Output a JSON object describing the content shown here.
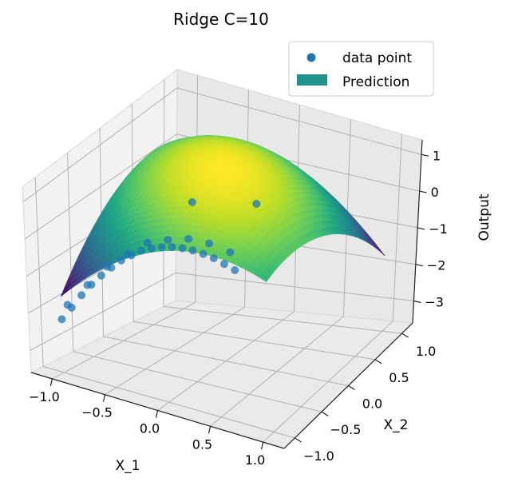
{
  "chart_data": {
    "type": "surface",
    "title": "Ridge C=10",
    "xlabel": "X_1",
    "ylabel": "X_2",
    "zlabel": "Output",
    "xlim": [
      -1.2,
      1.2
    ],
    "ylim": [
      -1.2,
      1.2
    ],
    "zlim": [
      -3.6,
      1.4
    ],
    "x_ticks": [
      "−1.0",
      "−0.5",
      "0.0",
      "0.5",
      "1.0"
    ],
    "y_ticks": [
      "−1.0",
      "−0.5",
      "0.0",
      "0.5",
      "1.0"
    ],
    "z_ticks": [
      "−3",
      "−2",
      "−1",
      "0",
      "1"
    ],
    "legend": {
      "placement": "top-right",
      "entries": [
        "data point",
        "Prediction"
      ]
    },
    "grid": true,
    "colormap": "viridis",
    "scatter_color": "#1f77b4",
    "surface_function": "1.2 - 1.0*x1^2 - 0.9*x2^2 - 0.9*x1*x2",
    "surface_range": {
      "x1": [
        -1.0,
        1.0
      ],
      "x2": [
        -1.0,
        1.0
      ]
    },
    "data_points": [
      {
        "x1": -1.0,
        "x2": -1.0,
        "z": -2.2
      },
      {
        "x1": -0.9,
        "x2": -1.0,
        "z": -1.82
      },
      {
        "x1": -0.8,
        "x2": -1.0,
        "z": -1.42
      },
      {
        "x1": -0.7,
        "x2": -1.0,
        "z": -1.07
      },
      {
        "x1": -0.6,
        "x2": -1.0,
        "z": -0.76
      },
      {
        "x1": -0.5,
        "x2": -1.0,
        "z": -0.48
      },
      {
        "x1": -0.4,
        "x2": -1.0,
        "z": -0.22
      },
      {
        "x1": -0.3,
        "x2": -1.0,
        "z": -0.02
      },
      {
        "x1": -0.2,
        "x2": -1.0,
        "z": 0.17
      },
      {
        "x1": -0.1,
        "x2": -1.0,
        "z": 0.3
      },
      {
        "x1": 0.0,
        "x2": -1.0,
        "z": 0.4
      },
      {
        "x1": 0.1,
        "x2": -1.0,
        "z": 0.47
      },
      {
        "x1": 0.2,
        "x2": -1.0,
        "z": 0.51
      },
      {
        "x1": 0.3,
        "x2": -1.0,
        "z": 0.52
      },
      {
        "x1": 0.4,
        "x2": -1.0,
        "z": 0.5
      },
      {
        "x1": 0.5,
        "x2": -1.0,
        "z": 0.46
      },
      {
        "x1": 0.6,
        "x2": -1.0,
        "z": 0.38
      },
      {
        "x1": 0.7,
        "x2": -1.0,
        "z": 0.29
      },
      {
        "x1": -1.0,
        "x2": -0.9,
        "z": -1.92
      },
      {
        "x1": -0.8,
        "x2": -0.9,
        "z": -1.26
      },
      {
        "x1": -0.6,
        "x2": -0.9,
        "z": -0.64
      },
      {
        "x1": -0.4,
        "x2": -0.9,
        "z": -0.17
      },
      {
        "x1": -0.2,
        "x2": -0.9,
        "z": 0.26
      },
      {
        "x1": 0.0,
        "x2": -0.9,
        "z": 0.47
      },
      {
        "x1": 0.2,
        "x2": -0.9,
        "z": 0.63
      },
      {
        "x1": 0.4,
        "x2": -0.9,
        "z": 0.65
      },
      {
        "x1": 0.6,
        "x2": -0.9,
        "z": 0.56
      },
      {
        "x1": 0.0,
        "x2": -0.5,
        "z": 0.96
      },
      {
        "x1": 0.5,
        "x2": -0.3,
        "z": 1.02
      }
    ]
  }
}
